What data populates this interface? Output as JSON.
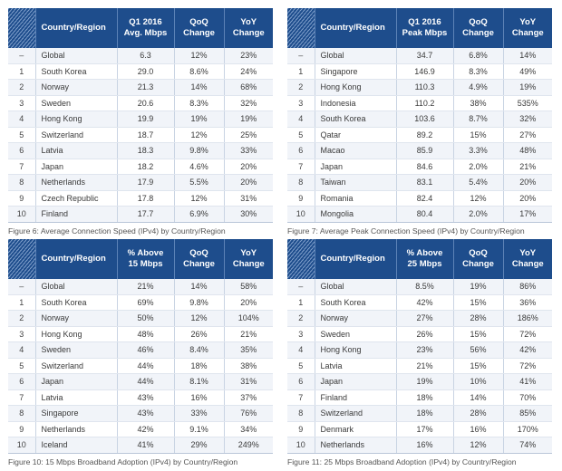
{
  "tables": [
    {
      "id": "fig6",
      "headers": [
        "Country/Region",
        "Q1 2016 Avg. Mbps",
        "QoQ Change",
        "YoY Change"
      ],
      "header_lines": [
        [
          "Country/Region"
        ],
        [
          "Q1 2016",
          "Avg. Mbps"
        ],
        [
          "QoQ",
          "Change"
        ],
        [
          "YoY",
          "Change"
        ]
      ],
      "rows": [
        [
          "–",
          "Global",
          "6.3",
          "12%",
          "23%"
        ],
        [
          "1",
          "South Korea",
          "29.0",
          "8.6%",
          "24%"
        ],
        [
          "2",
          "Norway",
          "21.3",
          "14%",
          "68%"
        ],
        [
          "3",
          "Sweden",
          "20.6",
          "8.3%",
          "32%"
        ],
        [
          "4",
          "Hong Kong",
          "19.9",
          "19%",
          "19%"
        ],
        [
          "5",
          "Switzerland",
          "18.7",
          "12%",
          "25%"
        ],
        [
          "6",
          "Latvia",
          "18.3",
          "9.8%",
          "33%"
        ],
        [
          "7",
          "Japan",
          "18.2",
          "4.6%",
          "20%"
        ],
        [
          "8",
          "Netherlands",
          "17.9",
          "5.5%",
          "20%"
        ],
        [
          "9",
          "Czech Republic",
          "17.8",
          "12%",
          "31%"
        ],
        [
          "10",
          "Finland",
          "17.7",
          "6.9%",
          "30%"
        ]
      ],
      "caption": "Figure 6: Average Connection Speed (IPv4) by Country/Region"
    },
    {
      "id": "fig7",
      "headers": [
        "Country/Region",
        "Q1 2016 Peak Mbps",
        "QoQ Change",
        "YoY Change"
      ],
      "header_lines": [
        [
          "Country/Region"
        ],
        [
          "Q1 2016",
          "Peak Mbps"
        ],
        [
          "QoQ",
          "Change"
        ],
        [
          "YoY",
          "Change"
        ]
      ],
      "rows": [
        [
          "–",
          "Global",
          "34.7",
          "6.8%",
          "14%"
        ],
        [
          "1",
          "Singapore",
          "146.9",
          "8.3%",
          "49%"
        ],
        [
          "2",
          "Hong Kong",
          "110.3",
          "4.9%",
          "19%"
        ],
        [
          "3",
          "Indonesia",
          "110.2",
          "38%",
          "535%"
        ],
        [
          "4",
          "South Korea",
          "103.6",
          "8.7%",
          "32%"
        ],
        [
          "5",
          "Qatar",
          "89.2",
          "15%",
          "27%"
        ],
        [
          "6",
          "Macao",
          "85.9",
          "3.3%",
          "48%"
        ],
        [
          "7",
          "Japan",
          "84.6",
          "2.0%",
          "21%"
        ],
        [
          "8",
          "Taiwan",
          "83.1",
          "5.4%",
          "20%"
        ],
        [
          "9",
          "Romania",
          "82.4",
          "12%",
          "20%"
        ],
        [
          "10",
          "Mongolia",
          "80.4",
          "2.0%",
          "17%"
        ]
      ],
      "caption": "Figure 7: Average Peak Connection Speed (IPv4) by Country/Region"
    },
    {
      "id": "fig10",
      "headers": [
        "Country/Region",
        "% Above 15 Mbps",
        "QoQ Change",
        "YoY Change"
      ],
      "header_lines": [
        [
          "Country/Region"
        ],
        [
          "% Above",
          "15 Mbps"
        ],
        [
          "QoQ",
          "Change"
        ],
        [
          "YoY",
          "Change"
        ]
      ],
      "rows": [
        [
          "–",
          "Global",
          "21%",
          "14%",
          "58%"
        ],
        [
          "1",
          "South Korea",
          "69%",
          "9.8%",
          "20%"
        ],
        [
          "2",
          "Norway",
          "50%",
          "12%",
          "104%"
        ],
        [
          "3",
          "Hong Kong",
          "48%",
          "26%",
          "21%"
        ],
        [
          "4",
          "Sweden",
          "46%",
          "8.4%",
          "35%"
        ],
        [
          "5",
          "Switzerland",
          "44%",
          "18%",
          "38%"
        ],
        [
          "6",
          "Japan",
          "44%",
          "8.1%",
          "31%"
        ],
        [
          "7",
          "Latvia",
          "43%",
          "16%",
          "37%"
        ],
        [
          "8",
          "Singapore",
          "43%",
          "33%",
          "76%"
        ],
        [
          "9",
          "Netherlands",
          "42%",
          "9.1%",
          "34%"
        ],
        [
          "10",
          "Iceland",
          "41%",
          "29%",
          "249%"
        ]
      ],
      "caption": "Figure 10: 15 Mbps Broadband Adoption (IPv4) by Country/Region"
    },
    {
      "id": "fig11",
      "headers": [
        "Country/Region",
        "% Above 25 Mbps",
        "QoQ Change",
        "YoY Change"
      ],
      "header_lines": [
        [
          "Country/Region"
        ],
        [
          "% Above",
          "25 Mbps"
        ],
        [
          "QoQ",
          "Change"
        ],
        [
          "YoY",
          "Change"
        ]
      ],
      "rows": [
        [
          "–",
          "Global",
          "8.5%",
          "19%",
          "86%"
        ],
        [
          "1",
          "South Korea",
          "42%",
          "15%",
          "36%"
        ],
        [
          "2",
          "Norway",
          "27%",
          "28%",
          "186%"
        ],
        [
          "3",
          "Sweden",
          "26%",
          "15%",
          "72%"
        ],
        [
          "4",
          "Hong Kong",
          "23%",
          "56%",
          "42%"
        ],
        [
          "5",
          "Latvia",
          "21%",
          "15%",
          "72%"
        ],
        [
          "6",
          "Japan",
          "19%",
          "10%",
          "41%"
        ],
        [
          "7",
          "Finland",
          "18%",
          "14%",
          "70%"
        ],
        [
          "8",
          "Switzerland",
          "18%",
          "28%",
          "85%"
        ],
        [
          "9",
          "Denmark",
          "17%",
          "16%",
          "170%"
        ],
        [
          "10",
          "Netherlands",
          "16%",
          "12%",
          "74%"
        ]
      ],
      "caption": "Figure 11: 25 Mbps Broadband Adoption (IPv4) by Country/Region"
    }
  ],
  "colors": {
    "header_bg": "#1e4d8c",
    "header_text": "#ffffff",
    "row_alt_bg": "#f1f4f9",
    "row_bg": "#ffffff"
  }
}
